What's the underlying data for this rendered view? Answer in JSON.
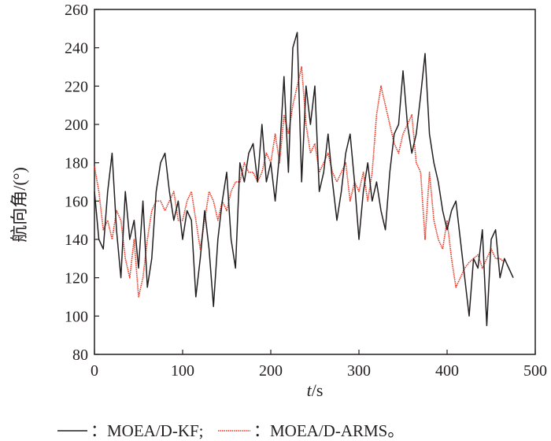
{
  "chart_data": {
    "type": "line",
    "title": "",
    "xlabel_italic": "t",
    "xlabel_unit": "/s",
    "ylabel": "航向角/(°)",
    "xlim": [
      0,
      500
    ],
    "ylim": [
      80,
      260
    ],
    "x_ticks": [
      "0",
      "100",
      "200",
      "300",
      "400",
      "500"
    ],
    "y_ticks": [
      "80",
      "100",
      "120",
      "140",
      "160",
      "180",
      "200",
      "220",
      "240",
      "260"
    ],
    "grid": false,
    "legend_position": "bottom",
    "series": [
      {
        "name": "MOEA/D-KF",
        "legend_label": "：MOEA/D-KF;",
        "color": "#231f20",
        "style": "solid",
        "x": [
          0,
          5,
          10,
          15,
          20,
          25,
          30,
          35,
          40,
          45,
          50,
          55,
          60,
          65,
          70,
          75,
          80,
          85,
          90,
          95,
          100,
          105,
          110,
          115,
          120,
          125,
          130,
          135,
          140,
          145,
          150,
          155,
          160,
          165,
          170,
          175,
          180,
          185,
          190,
          195,
          200,
          205,
          210,
          215,
          220,
          225,
          230,
          235,
          240,
          245,
          250,
          255,
          260,
          265,
          270,
          275,
          280,
          285,
          290,
          295,
          300,
          305,
          310,
          315,
          320,
          325,
          330,
          335,
          340,
          345,
          350,
          355,
          360,
          365,
          370,
          375,
          380,
          385,
          390,
          395,
          400,
          405,
          410,
          415,
          420,
          425,
          430,
          435,
          440,
          445,
          450,
          455,
          460,
          465,
          470,
          475
        ],
        "values": [
          165,
          140,
          135,
          165,
          185,
          145,
          120,
          165,
          140,
          150,
          125,
          160,
          115,
          130,
          165,
          180,
          185,
          165,
          150,
          160,
          140,
          155,
          150,
          110,
          130,
          155,
          135,
          105,
          140,
          160,
          175,
          140,
          125,
          180,
          170,
          185,
          190,
          170,
          200,
          170,
          180,
          160,
          185,
          225,
          175,
          240,
          248,
          170,
          220,
          200,
          220,
          165,
          175,
          195,
          170,
          150,
          165,
          185,
          195,
          170,
          140,
          165,
          180,
          160,
          170,
          155,
          145,
          175,
          195,
          200,
          228,
          200,
          185,
          195,
          215,
          237,
          195,
          180,
          170,
          155,
          145,
          155,
          160,
          140,
          120,
          100,
          130,
          125,
          145,
          95,
          140,
          145,
          120,
          130,
          125,
          120
        ]
      },
      {
        "name": "MOEA/D-ARMS",
        "legend_label": "：MOEA/D-ARMS。",
        "color": "#e8311f",
        "style": "dotted",
        "x": [
          0,
          5,
          10,
          15,
          20,
          25,
          30,
          35,
          40,
          45,
          50,
          55,
          60,
          65,
          70,
          75,
          80,
          85,
          90,
          95,
          100,
          105,
          110,
          115,
          120,
          125,
          130,
          135,
          140,
          145,
          150,
          155,
          160,
          165,
          170,
          175,
          180,
          185,
          190,
          195,
          200,
          205,
          210,
          215,
          220,
          225,
          230,
          235,
          240,
          245,
          250,
          255,
          260,
          265,
          270,
          275,
          280,
          285,
          290,
          295,
          300,
          305,
          310,
          315,
          320,
          325,
          330,
          335,
          340,
          345,
          350,
          355,
          360,
          365,
          370,
          375,
          380,
          385,
          390,
          395,
          400,
          405,
          410,
          415,
          420,
          425,
          430,
          435,
          440,
          445,
          450,
          455,
          460,
          465
        ],
        "values": [
          178,
          165,
          145,
          150,
          140,
          155,
          150,
          130,
          120,
          140,
          110,
          120,
          140,
          155,
          160,
          160,
          155,
          160,
          165,
          150,
          150,
          160,
          165,
          150,
          135,
          150,
          165,
          160,
          150,
          160,
          155,
          165,
          170,
          170,
          180,
          175,
          175,
          170,
          175,
          185,
          180,
          195,
          180,
          205,
          195,
          210,
          220,
          230,
          200,
          185,
          190,
          175,
          180,
          185,
          175,
          170,
          175,
          180,
          160,
          170,
          165,
          175,
          160,
          175,
          205,
          220,
          210,
          200,
          190,
          185,
          195,
          200,
          205,
          180,
          175,
          140,
          175,
          150,
          140,
          135,
          150,
          130,
          115,
          120,
          125,
          128,
          130,
          132,
          125,
          130,
          135,
          130,
          130,
          128
        ]
      }
    ]
  }
}
